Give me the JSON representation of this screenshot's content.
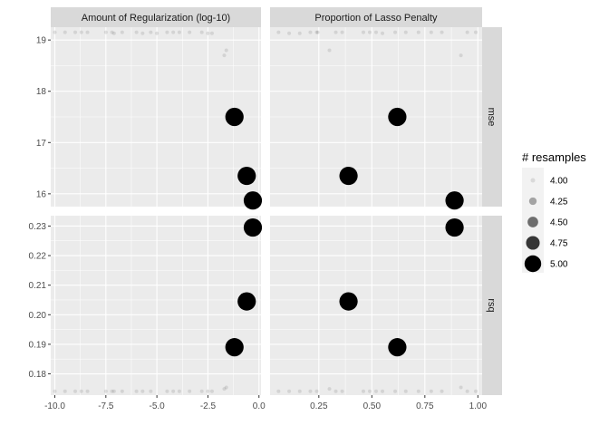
{
  "chart_data": {
    "type": "scatter",
    "facet_columns": [
      {
        "title": "Amount of Regularization (log-10)",
        "xlim": [
          -10.2,
          0.1
        ],
        "xticks": [
          -10,
          -7.5,
          -5,
          -2.5,
          0
        ],
        "xtick_labels": [
          "-10.0",
          "-7.5",
          "-5.0",
          "-2.5",
          "0.0"
        ]
      },
      {
        "title": "Proportion of Lasso Penalty",
        "xlim": [
          0.02,
          1.02
        ],
        "xticks": [
          0.25,
          0.5,
          0.75,
          1.0
        ],
        "xtick_labels": [
          "0.25",
          "0.50",
          "0.75",
          "1.00"
        ]
      }
    ],
    "facet_rows": [
      {
        "title": "mse",
        "ylim": [
          15.75,
          19.25
        ],
        "yticks": [
          16,
          17,
          18,
          19
        ],
        "ytick_labels": [
          "16",
          "17",
          "18",
          "19"
        ]
      },
      {
        "title": "rsq",
        "ylim": [
          0.1728,
          0.2335
        ],
        "yticks": [
          0.18,
          0.19,
          0.2,
          0.21,
          0.22,
          0.23
        ],
        "ytick_labels": [
          "0.18",
          "0.19",
          "0.20",
          "0.21",
          "0.22",
          "0.23"
        ]
      }
    ],
    "legend": {
      "title": "# resamples",
      "position": "right",
      "entries": [
        {
          "label": "4.00",
          "value": 4.0
        },
        {
          "label": "4.25",
          "value": 4.25
        },
        {
          "label": "4.50",
          "value": 4.5
        },
        {
          "label": "4.75",
          "value": 4.75
        },
        {
          "label": "5.00",
          "value": 5.0
        }
      ]
    },
    "grid": true,
    "points": {
      "penalty_mse": [
        {
          "x": -1.2,
          "y": 17.5,
          "n": 5
        },
        {
          "x": -0.6,
          "y": 16.35,
          "n": 5
        },
        {
          "x": -0.3,
          "y": 15.87,
          "n": 5
        },
        {
          "x": -1.6,
          "y": 18.8,
          "n": 4
        },
        {
          "x": -1.7,
          "y": 18.7,
          "n": 4
        },
        {
          "x": -10.0,
          "y": 19.15,
          "n": 4
        },
        {
          "x": -9.5,
          "y": 19.15,
          "n": 4
        },
        {
          "x": -9.0,
          "y": 19.15,
          "n": 4
        },
        {
          "x": -8.7,
          "y": 19.15,
          "n": 4
        },
        {
          "x": -8.4,
          "y": 19.15,
          "n": 4
        },
        {
          "x": -7.5,
          "y": 19.15,
          "n": 4
        },
        {
          "x": -7.2,
          "y": 19.15,
          "n": 4
        },
        {
          "x": -7.1,
          "y": 19.13,
          "n": 4
        },
        {
          "x": -6.7,
          "y": 19.15,
          "n": 4
        },
        {
          "x": -6.0,
          "y": 19.15,
          "n": 4
        },
        {
          "x": -5.7,
          "y": 19.13,
          "n": 4
        },
        {
          "x": -5.3,
          "y": 19.15,
          "n": 4
        },
        {
          "x": -5.0,
          "y": 19.13,
          "n": 4
        },
        {
          "x": -4.5,
          "y": 19.15,
          "n": 4
        },
        {
          "x": -4.2,
          "y": 19.15,
          "n": 4
        },
        {
          "x": -3.9,
          "y": 19.15,
          "n": 4
        },
        {
          "x": -3.4,
          "y": 19.15,
          "n": 4
        },
        {
          "x": -2.8,
          "y": 19.15,
          "n": 4
        },
        {
          "x": -2.5,
          "y": 19.13,
          "n": 4
        },
        {
          "x": -2.3,
          "y": 19.13,
          "n": 4
        }
      ],
      "mixture_mse": [
        {
          "x": 0.62,
          "y": 17.5,
          "n": 5
        },
        {
          "x": 0.39,
          "y": 16.35,
          "n": 5
        },
        {
          "x": 0.89,
          "y": 15.87,
          "n": 5
        },
        {
          "x": 0.3,
          "y": 18.8,
          "n": 4
        },
        {
          "x": 0.92,
          "y": 18.7,
          "n": 4
        },
        {
          "x": 0.06,
          "y": 19.15,
          "n": 4
        },
        {
          "x": 0.11,
          "y": 19.13,
          "n": 4
        },
        {
          "x": 0.16,
          "y": 19.13,
          "n": 4
        },
        {
          "x": 0.21,
          "y": 19.15,
          "n": 4
        },
        {
          "x": 0.24,
          "y": 19.15,
          "n": 4
        },
        {
          "x": 0.245,
          "y": 19.15,
          "n": 4
        },
        {
          "x": 0.33,
          "y": 19.15,
          "n": 4
        },
        {
          "x": 0.36,
          "y": 19.15,
          "n": 4
        },
        {
          "x": 0.46,
          "y": 19.15,
          "n": 4
        },
        {
          "x": 0.49,
          "y": 19.15,
          "n": 4
        },
        {
          "x": 0.52,
          "y": 19.15,
          "n": 4
        },
        {
          "x": 0.55,
          "y": 19.13,
          "n": 4
        },
        {
          "x": 0.61,
          "y": 19.15,
          "n": 4
        },
        {
          "x": 0.66,
          "y": 19.15,
          "n": 4
        },
        {
          "x": 0.72,
          "y": 19.15,
          "n": 4
        },
        {
          "x": 0.78,
          "y": 19.15,
          "n": 4
        },
        {
          "x": 0.83,
          "y": 19.15,
          "n": 4
        },
        {
          "x": 0.95,
          "y": 19.15,
          "n": 4
        },
        {
          "x": 0.99,
          "y": 19.15,
          "n": 4
        }
      ],
      "penalty_rsq": [
        {
          "x": -0.3,
          "y": 0.2295,
          "n": 5
        },
        {
          "x": -0.6,
          "y": 0.2045,
          "n": 5
        },
        {
          "x": -1.2,
          "y": 0.189,
          "n": 5
        },
        {
          "x": -1.6,
          "y": 0.1754,
          "n": 4
        },
        {
          "x": -1.7,
          "y": 0.1749,
          "n": 4
        },
        {
          "x": -10.0,
          "y": 0.1741,
          "n": 4
        },
        {
          "x": -9.5,
          "y": 0.1741,
          "n": 4
        },
        {
          "x": -9.0,
          "y": 0.1741,
          "n": 4
        },
        {
          "x": -8.7,
          "y": 0.1741,
          "n": 4
        },
        {
          "x": -8.4,
          "y": 0.1741,
          "n": 4
        },
        {
          "x": -7.5,
          "y": 0.1741,
          "n": 4
        },
        {
          "x": -7.2,
          "y": 0.1741,
          "n": 4
        },
        {
          "x": -7.1,
          "y": 0.1741,
          "n": 4
        },
        {
          "x": -6.7,
          "y": 0.1741,
          "n": 4
        },
        {
          "x": -6.0,
          "y": 0.1741,
          "n": 4
        },
        {
          "x": -5.7,
          "y": 0.1741,
          "n": 4
        },
        {
          "x": -5.3,
          "y": 0.1741,
          "n": 4
        },
        {
          "x": -4.5,
          "y": 0.1741,
          "n": 4
        },
        {
          "x": -4.2,
          "y": 0.1741,
          "n": 4
        },
        {
          "x": -3.9,
          "y": 0.1741,
          "n": 4
        },
        {
          "x": -3.4,
          "y": 0.1741,
          "n": 4
        },
        {
          "x": -2.8,
          "y": 0.1741,
          "n": 4
        },
        {
          "x": -2.5,
          "y": 0.1741,
          "n": 4
        },
        {
          "x": -2.3,
          "y": 0.1741,
          "n": 4
        }
      ],
      "mixture_rsq": [
        {
          "x": 0.89,
          "y": 0.2295,
          "n": 5
        },
        {
          "x": 0.39,
          "y": 0.2045,
          "n": 5
        },
        {
          "x": 0.62,
          "y": 0.189,
          "n": 5
        },
        {
          "x": 0.3,
          "y": 0.1749,
          "n": 4
        },
        {
          "x": 0.92,
          "y": 0.1754,
          "n": 4
        },
        {
          "x": 0.06,
          "y": 0.1741,
          "n": 4
        },
        {
          "x": 0.11,
          "y": 0.1741,
          "n": 4
        },
        {
          "x": 0.16,
          "y": 0.1741,
          "n": 4
        },
        {
          "x": 0.21,
          "y": 0.1741,
          "n": 4
        },
        {
          "x": 0.24,
          "y": 0.1741,
          "n": 4
        },
        {
          "x": 0.33,
          "y": 0.1741,
          "n": 4
        },
        {
          "x": 0.36,
          "y": 0.1741,
          "n": 4
        },
        {
          "x": 0.46,
          "y": 0.1741,
          "n": 4
        },
        {
          "x": 0.49,
          "y": 0.1741,
          "n": 4
        },
        {
          "x": 0.52,
          "y": 0.1741,
          "n": 4
        },
        {
          "x": 0.55,
          "y": 0.1741,
          "n": 4
        },
        {
          "x": 0.61,
          "y": 0.1741,
          "n": 4
        },
        {
          "x": 0.66,
          "y": 0.1741,
          "n": 4
        },
        {
          "x": 0.72,
          "y": 0.1741,
          "n": 4
        },
        {
          "x": 0.78,
          "y": 0.1741,
          "n": 4
        },
        {
          "x": 0.83,
          "y": 0.1741,
          "n": 4
        },
        {
          "x": 0.95,
          "y": 0.1741,
          "n": 4
        },
        {
          "x": 0.99,
          "y": 0.1741,
          "n": 4
        }
      ]
    },
    "colors": {
      "panel_bg": "#ebebeb",
      "strip_bg": "#d9d9d9",
      "grid": "#ffffff",
      "point": "#000000"
    }
  }
}
